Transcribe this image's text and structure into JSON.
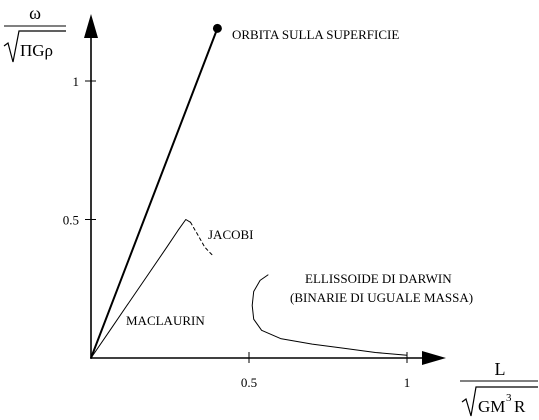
{
  "chart_data": {
    "type": "line",
    "title": "",
    "y_axis": {
      "label_top": "ω",
      "label_bottom": "ΠGρ",
      "ticks": [
        0.5,
        1
      ],
      "tick_labels": [
        "0.5",
        "1"
      ]
    },
    "x_axis": {
      "label_top": "L",
      "label_bottom_main": "GM",
      "label_bottom_exp": "3",
      "label_bottom_tail": "R",
      "ticks": [
        0.5,
        1
      ],
      "tick_labels": [
        "0.5",
        "1"
      ]
    },
    "xlim": [
      0,
      1.15
    ],
    "ylim": [
      0,
      1.22
    ],
    "series": [
      {
        "name": "ORBITA SULLA SUPERFICIE",
        "style": "solid",
        "weight": "bold",
        "end_marker": true,
        "points": [
          [
            0,
            0
          ],
          [
            0.4,
            1.19
          ]
        ]
      },
      {
        "name": "MACLAURIN",
        "style": "solid",
        "weight": "thin",
        "points": [
          [
            0,
            0
          ],
          [
            0.06,
            0.1
          ],
          [
            0.12,
            0.2
          ],
          [
            0.18,
            0.3
          ],
          [
            0.24,
            0.4
          ],
          [
            0.275,
            0.46
          ],
          [
            0.3,
            0.5
          ],
          [
            0.315,
            0.49
          ]
        ]
      },
      {
        "name": "JACOBI",
        "style": "dashed",
        "weight": "thin",
        "points": [
          [
            0.315,
            0.49
          ],
          [
            0.335,
            0.45
          ],
          [
            0.36,
            0.4
          ],
          [
            0.385,
            0.37
          ]
        ]
      },
      {
        "name": "ELLISSOIDE DI DARWIN",
        "style": "solid",
        "weight": "thin",
        "points": [
          [
            0.56,
            0.3
          ],
          [
            0.535,
            0.28
          ],
          [
            0.515,
            0.24
          ],
          [
            0.51,
            0.19
          ],
          [
            0.515,
            0.14
          ],
          [
            0.54,
            0.1
          ],
          [
            0.6,
            0.07
          ],
          [
            0.7,
            0.05
          ],
          [
            0.8,
            0.035
          ],
          [
            0.9,
            0.02
          ],
          [
            1.0,
            0.01
          ]
        ]
      }
    ],
    "annotations": {
      "orbita": "ORBITA SULLA SUPERFICIE",
      "jacobi": "JACOBI",
      "maclaurin": "MACLAURIN",
      "darwin_line1": "ELLISSOIDE DI DARWIN",
      "darwin_line2": "(BINARIE DI UGUALE MASSA)"
    }
  }
}
